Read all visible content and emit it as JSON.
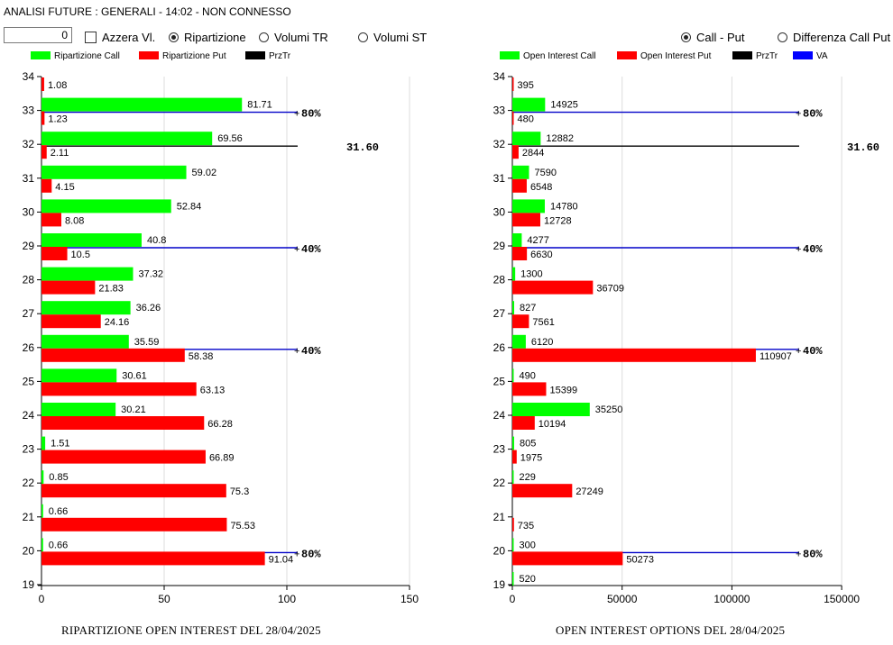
{
  "header": {
    "title": "ANALISI FUTURE : GENERALI - 14:02 - NON CONNESSO"
  },
  "controls": {
    "input_value": "0",
    "azzera_label": "Azzera Vl.",
    "ripartizione_label": "Ripartizione",
    "volumi_tr_label": "Volumi TR",
    "volumi_st_label": "Volumi ST",
    "call_put_label": "Call - Put",
    "differenza_label": "Differenza Call Put"
  },
  "colors": {
    "call": "#00ff00",
    "put": "#ff0000",
    "prztr": "#000000",
    "va": "#0000ff"
  },
  "chart_data": [
    {
      "type": "bar",
      "orientation": "horizontal",
      "title": "RIPARTIZIONE OPEN INTEREST DEL 28/04/2025",
      "categories": [
        "19",
        "20",
        "21",
        "22",
        "23",
        "24",
        "25",
        "26",
        "27",
        "28",
        "29",
        "30",
        "31",
        "32",
        "33",
        "34"
      ],
      "series": [
        {
          "name": "Ripartizione Call",
          "values": [
            null,
            0.66,
            0.66,
            0.85,
            1.51,
            30.21,
            30.61,
            35.59,
            36.26,
            37.32,
            40.8,
            52.84,
            59.02,
            69.56,
            81.71,
            null
          ]
        },
        {
          "name": "Ripartizione Put",
          "values": [
            null,
            91.04,
            75.53,
            75.3,
            66.89,
            66.28,
            63.13,
            58.38,
            24.16,
            21.83,
            10.5,
            8.08,
            4.15,
            2.11,
            1.23,
            1.08
          ]
        }
      ],
      "legend": [
        "Ripartizione Call",
        "Ripartizione Put",
        "PrzTr"
      ],
      "xlim": [
        0,
        175
      ],
      "xticks": [
        0,
        50,
        100,
        150
      ],
      "ylim": [
        19,
        34
      ],
      "ref_lines": [
        {
          "y": 33,
          "label": "80%",
          "color": "blue"
        },
        {
          "y": 32,
          "label": "31.60",
          "color": "black"
        },
        {
          "y": 29,
          "label": "40%",
          "color": "blue"
        },
        {
          "y": 26,
          "label": "40%",
          "color": "blue"
        },
        {
          "y": 20,
          "label": "80%",
          "color": "blue"
        }
      ]
    },
    {
      "type": "bar",
      "orientation": "horizontal",
      "title": "OPEN INTEREST OPTIONS DEL 28/04/2025",
      "categories": [
        "19",
        "20",
        "21",
        "22",
        "23",
        "24",
        "25",
        "26",
        "27",
        "28",
        "29",
        "30",
        "31",
        "32",
        "33",
        "34"
      ],
      "series": [
        {
          "name": "Open Interest Call",
          "values": [
            520,
            300,
            null,
            229,
            805,
            35250,
            490,
            6120,
            827,
            1300,
            4277,
            14780,
            7590,
            12882,
            14925,
            null
          ]
        },
        {
          "name": "Open Interest Put",
          "values": [
            null,
            50273,
            735,
            27249,
            1975,
            10194,
            15399,
            110907,
            7561,
            36709,
            6630,
            12728,
            6548,
            2844,
            480,
            395
          ]
        }
      ],
      "legend": [
        "Open Interest Call",
        "Open Interest Put",
        "PrzTr",
        "VA"
      ],
      "xlim": [
        0,
        150000
      ],
      "xticks": [
        0,
        50000,
        100000,
        150000
      ],
      "ylim": [
        19,
        34
      ],
      "ref_lines": [
        {
          "y": 33,
          "label": "80%",
          "color": "blue"
        },
        {
          "y": 32,
          "label": "31.60",
          "color": "black"
        },
        {
          "y": 29,
          "label": "40%",
          "color": "blue"
        },
        {
          "y": 26,
          "label": "40%",
          "color": "blue"
        },
        {
          "y": 20,
          "label": "80%",
          "color": "blue"
        }
      ]
    }
  ]
}
